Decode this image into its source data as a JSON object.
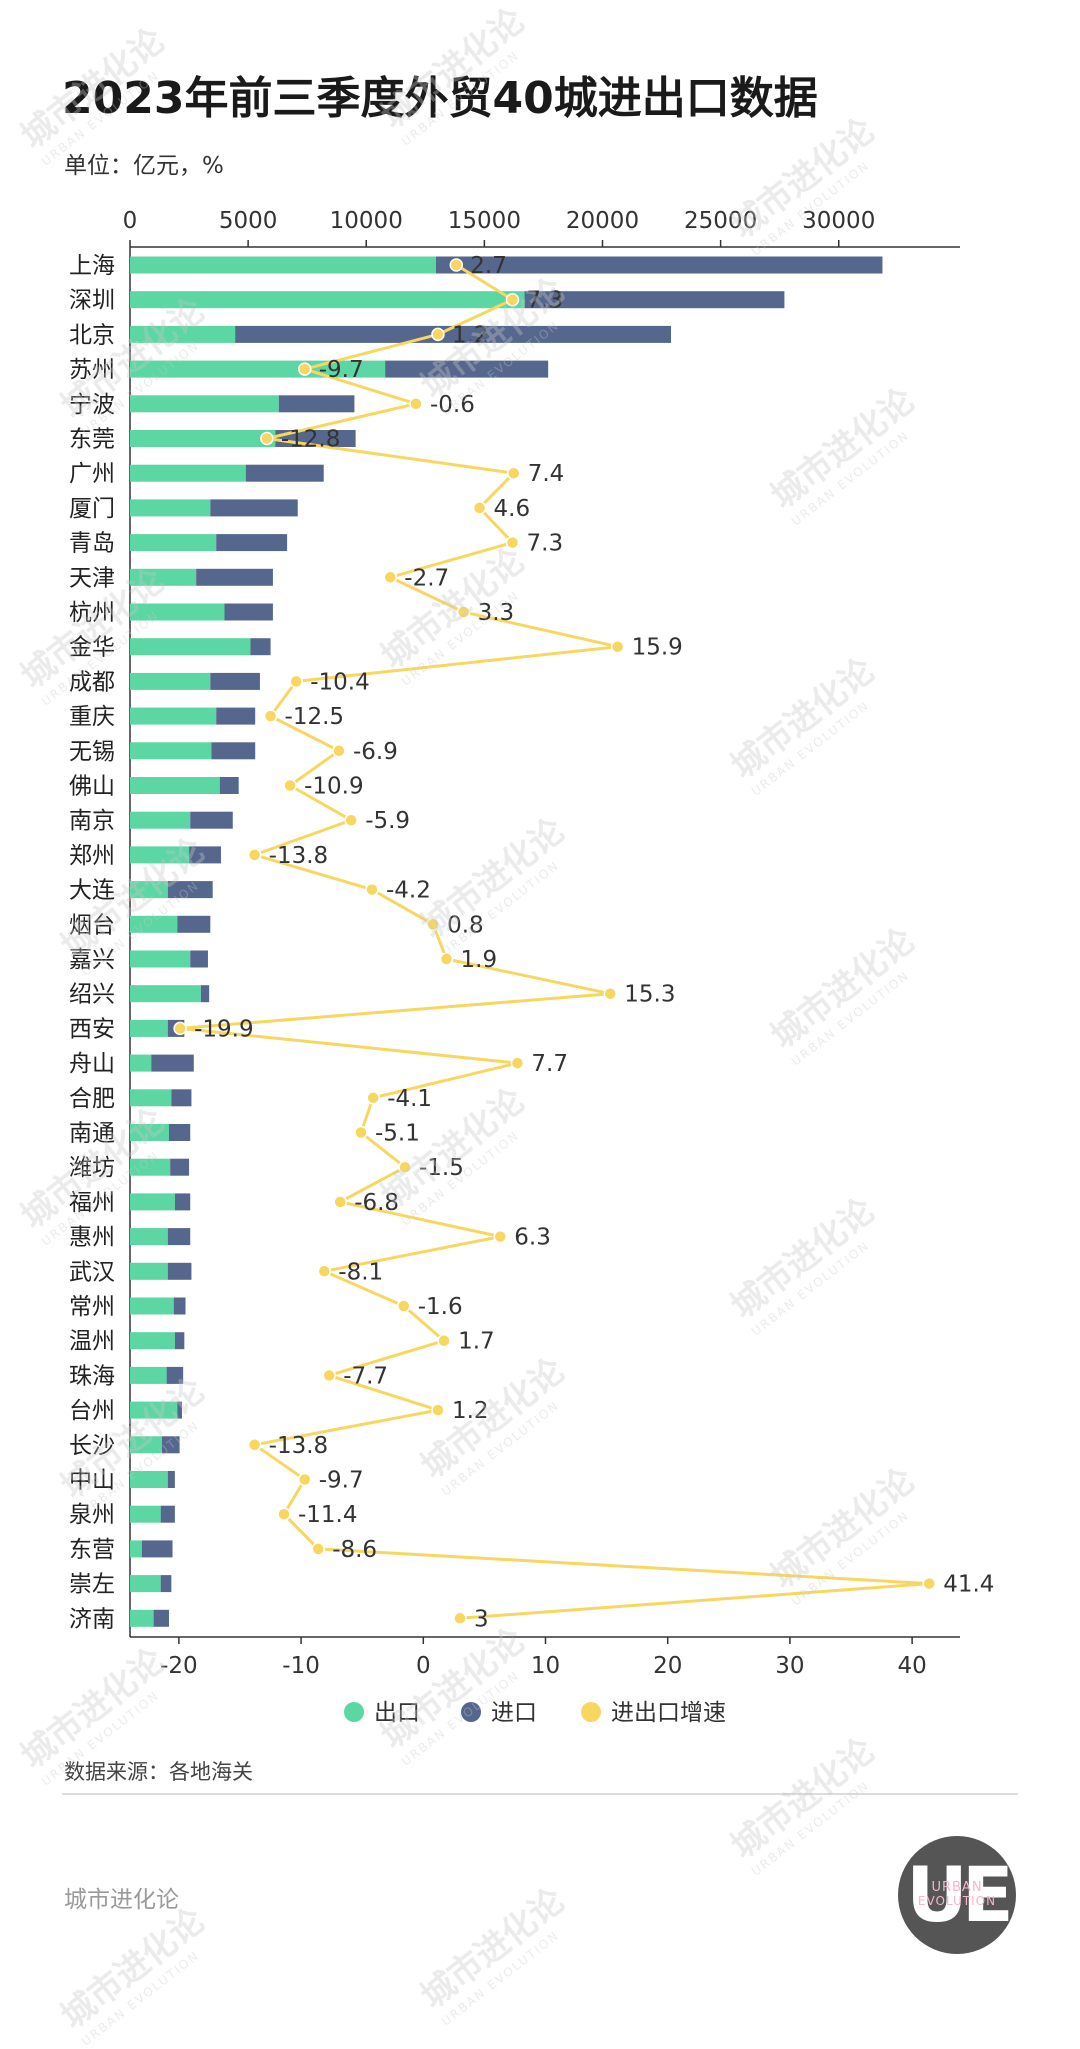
{
  "header": {
    "title": "2023年前三季度外贸40城进出口数据",
    "unit": "单位：亿元，%"
  },
  "chart_data": {
    "type": "bar",
    "stacked": true,
    "orientation": "horizontal",
    "categories": [
      "上海",
      "深圳",
      "北京",
      "苏州",
      "宁波",
      "东莞",
      "广州",
      "厦门",
      "青岛",
      "天津",
      "杭州",
      "金华",
      "成都",
      "重庆",
      "无锡",
      "佛山",
      "南京",
      "郑州",
      "大连",
      "烟台",
      "嘉兴",
      "绍兴",
      "西安",
      "舟山",
      "合肥",
      "南通",
      "潍坊",
      "福州",
      "惠州",
      "武汉",
      "常州",
      "温州",
      "珠海",
      "台州",
      "长沙",
      "中山",
      "泉州",
      "东营",
      "崇左",
      "济南"
    ],
    "series": [
      {
        "name": "出口",
        "color": "#5cd6a3",
        "values": [
          12950,
          16700,
          4450,
          10800,
          6300,
          6150,
          4900,
          3400,
          3650,
          2800,
          4000,
          5100,
          3400,
          3650,
          3450,
          3800,
          2550,
          2500,
          1600,
          2000,
          2550,
          3000,
          1600,
          900,
          1750,
          1650,
          1700,
          1900,
          1600,
          1600,
          1850,
          1900,
          1550,
          2000,
          1350,
          1600,
          1300,
          500,
          1300,
          1000
        ]
      },
      {
        "name": "进口",
        "color": "#56678e",
        "values": [
          18900,
          11000,
          18450,
          6900,
          3200,
          3400,
          3300,
          3700,
          3000,
          3250,
          2050,
          850,
          2100,
          1650,
          1850,
          800,
          1800,
          1350,
          1900,
          1400,
          750,
          350,
          700,
          1800,
          850,
          900,
          800,
          650,
          950,
          1000,
          500,
          400,
          700,
          200,
          750,
          300,
          600,
          1300,
          450,
          650
        ]
      },
      {
        "name": "进出口增速",
        "color": "#f7d760",
        "values": [
          2.7,
          7.3,
          1.2,
          -9.7,
          -0.6,
          -12.8,
          7.4,
          4.6,
          7.3,
          -2.7,
          3.3,
          15.9,
          -10.4,
          -12.5,
          -6.9,
          -10.9,
          -5.9,
          -13.8,
          -4.2,
          0.8,
          1.9,
          15.3,
          -19.9,
          7.7,
          -4.1,
          -5.1,
          -1.5,
          -6.8,
          6.3,
          -8.1,
          -1.6,
          1.7,
          -7.7,
          1.2,
          -13.8,
          -9.7,
          -11.4,
          -8.6,
          41.4,
          3
        ]
      }
    ],
    "top_axis": {
      "ticks": [
        0,
        5000,
        10000,
        15000,
        20000,
        25000,
        30000
      ],
      "range": [
        0,
        35000
      ]
    },
    "bottom_axis": {
      "ticks": [
        -20,
        -10,
        0,
        10,
        20,
        30,
        40
      ],
      "range": [
        -24,
        44
      ]
    },
    "legend_position": "bottom",
    "grid": false
  },
  "footer": {
    "source": "数据来源：各地海关",
    "brand": "城市进化论",
    "logo_mark": "UE",
    "logo_text_1": "URBAN",
    "logo_text_2": "EVOLUTION"
  },
  "colors": {
    "export": "#5cd6a3",
    "import": "#56678e",
    "growth": "#f7d760"
  },
  "watermark": {
    "text": "城市进化论",
    "subtext": "URBAN EVOLUTION"
  }
}
